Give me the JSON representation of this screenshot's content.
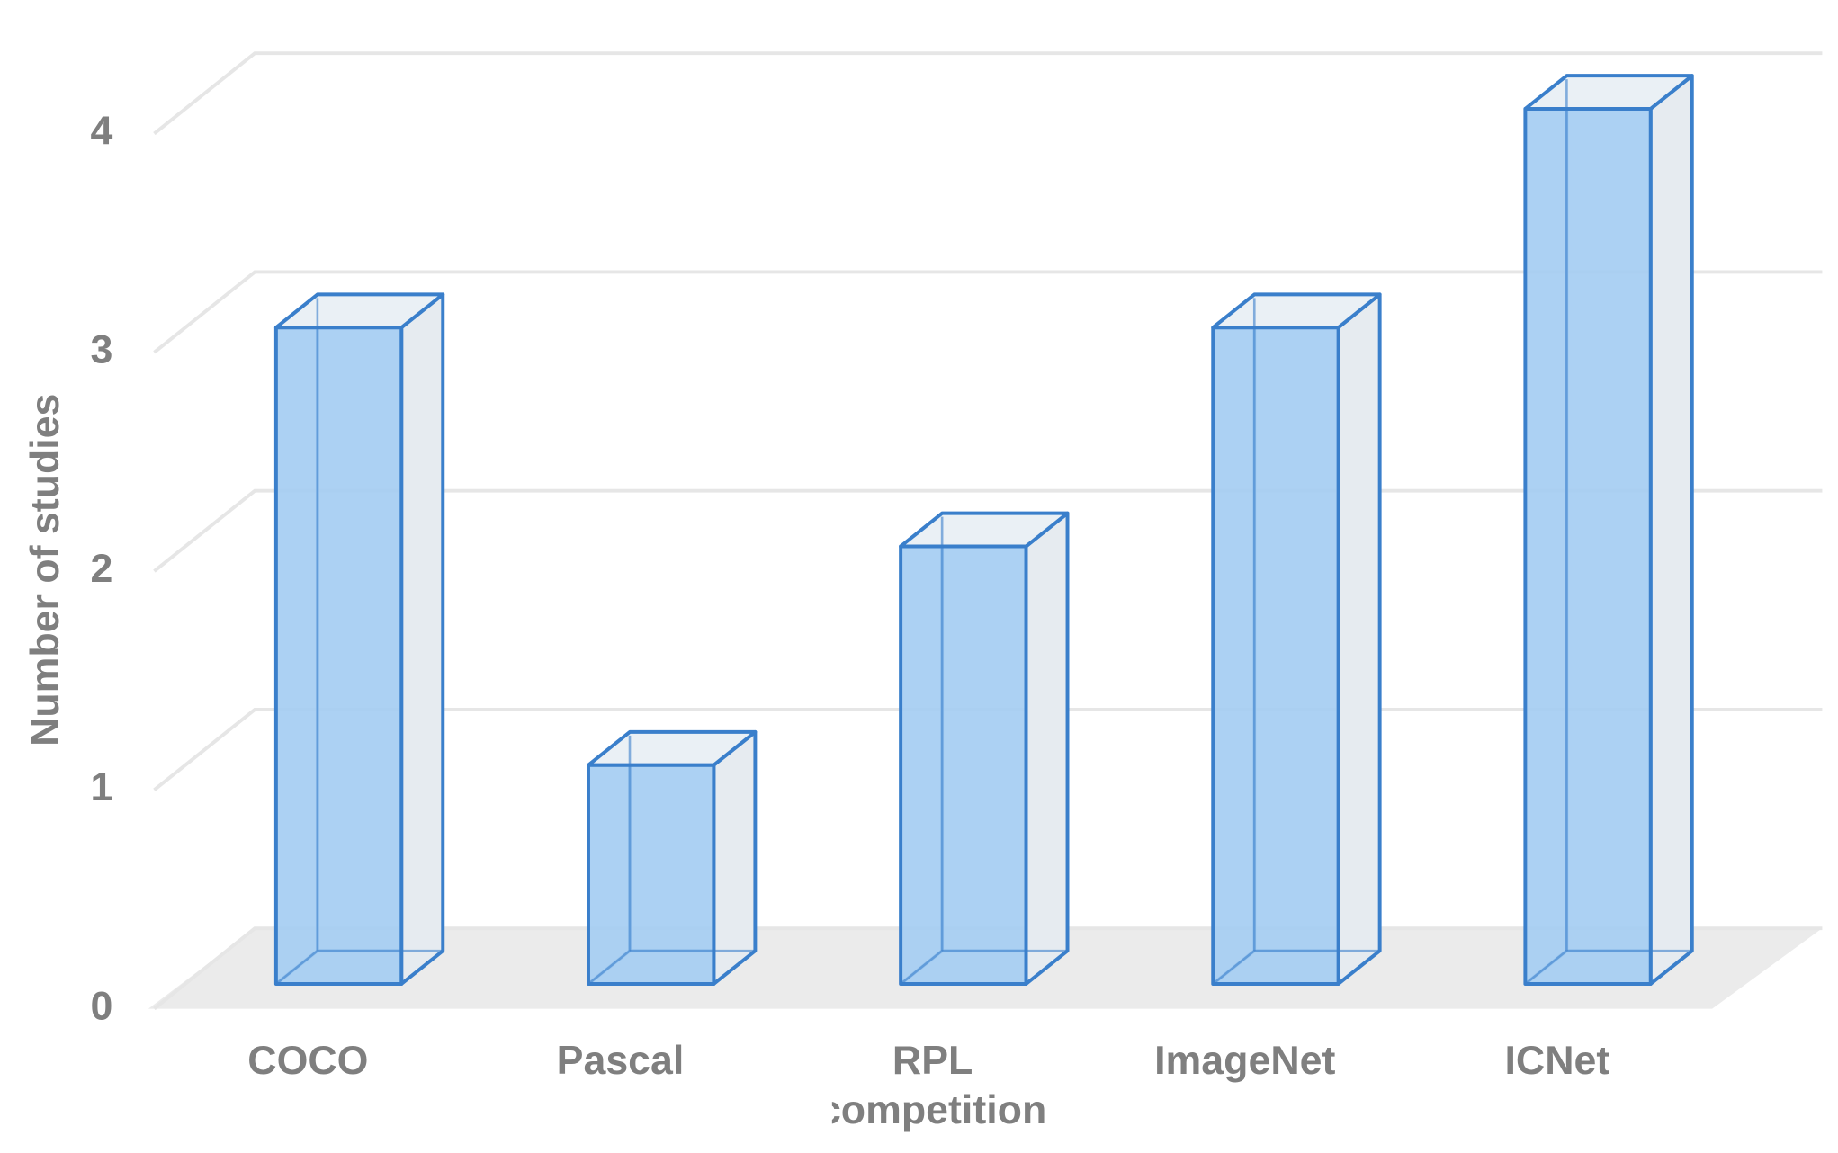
{
  "chart_data": {
    "type": "bar",
    "y_label": "Number of studies",
    "categories": [
      "COCO",
      "Pascal",
      "RPL competition",
      "ImageNet",
      "ICNet"
    ],
    "values": [
      3,
      1,
      2,
      3,
      4
    ],
    "color": "#a5cdf2",
    "edge_color": "#3a7fcb",
    "ylim": [
      0,
      4
    ],
    "yticks": [
      0,
      1,
      2,
      3,
      4
    ],
    "grid": true
  }
}
